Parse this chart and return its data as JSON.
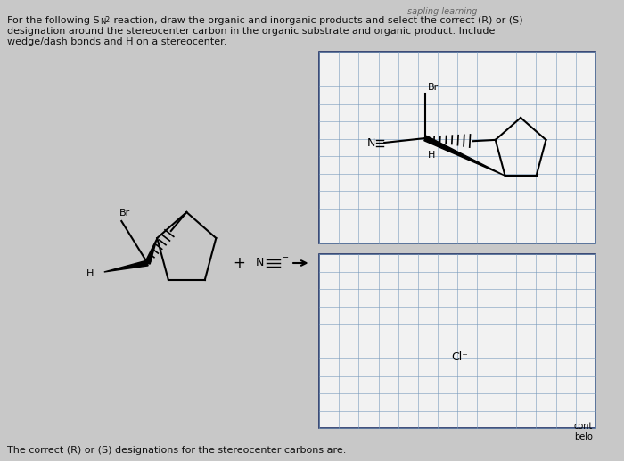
{
  "bg_color": "#c8c8c8",
  "grid_bg": "#f0f0f0",
  "grid_color": "#7799bb",
  "border_color": "#223366",
  "text_color": "#111111",
  "watermark": "sapling learning",
  "title_line1": "For the following S",
  "title_N": "N",
  "title_2": "2",
  "title_rest1": " reaction, draw the organic and inorganic products and select the correct (R) or (S)",
  "title_line2": "designation around the stereocenter carbon in the organic substrate and organic product. Include",
  "title_line3": "wedge/dash bonds and H on a stereocenter.",
  "bottom_text": "The correct (R) or (S) designations for the stereocenter carbons are:",
  "cont_text": "cont\nbelo"
}
